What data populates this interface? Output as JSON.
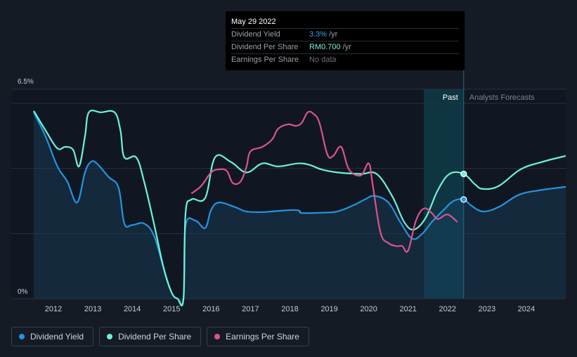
{
  "tooltip": {
    "date": "May 29 2022",
    "rows": [
      {
        "label": "Dividend Yield",
        "value": "3.3%",
        "unit": "/yr"
      },
      {
        "label": "Dividend Per Share",
        "value": "RM0.700",
        "unit": "/yr"
      },
      {
        "label": "Earnings Per Share",
        "value": "No data",
        "unit": ""
      }
    ]
  },
  "legend": {
    "items": [
      {
        "label": "Dividend Yield",
        "color": "#2394df"
      },
      {
        "label": "Dividend Per Share",
        "color": "#6cf2d8"
      },
      {
        "label": "Earnings Per Share",
        "color": "#d9548e"
      }
    ]
  },
  "chart_data": {
    "type": "line",
    "title": "",
    "xlabel": "",
    "ylabel": "",
    "y_top_label": "6.5%",
    "y_bottom_label": "0%",
    "ylim": [
      0,
      6.5
    ],
    "xlim": [
      2011.5,
      2025.0
    ],
    "x_ticks": [
      "2012",
      "2013",
      "2014",
      "2015",
      "2016",
      "2017",
      "2018",
      "2019",
      "2020",
      "2021",
      "2022",
      "2023",
      "2024"
    ],
    "past_label": "Past",
    "forecast_label": "Analysts Forecasts",
    "past_band_start": 2021.4,
    "forecast_start": 2022.41,
    "series": [
      {
        "name": "Dividend Yield",
        "color": "#2394df",
        "fill": true,
        "points": [
          [
            2011.5,
            6.2
          ],
          [
            2011.8,
            5.4
          ],
          [
            2012.1,
            4.4
          ],
          [
            2012.35,
            3.9
          ],
          [
            2012.6,
            3.2
          ],
          [
            2012.8,
            4.2
          ],
          [
            2012.95,
            4.55
          ],
          [
            2013.1,
            4.5
          ],
          [
            2013.4,
            4.05
          ],
          [
            2013.65,
            3.7
          ],
          [
            2013.8,
            2.5
          ],
          [
            2014.0,
            2.45
          ],
          [
            2014.3,
            2.5
          ],
          [
            2014.55,
            2.1
          ],
          [
            2014.8,
            1.0
          ],
          [
            2015.0,
            0.2
          ],
          [
            2015.15,
            0.0
          ],
          [
            2015.3,
            0.0
          ],
          [
            2015.35,
            2.4
          ],
          [
            2015.6,
            2.6
          ],
          [
            2015.85,
            2.35
          ],
          [
            2016.0,
            2.95
          ],
          [
            2016.2,
            3.2
          ],
          [
            2016.6,
            3.05
          ],
          [
            2016.9,
            2.9
          ],
          [
            2017.3,
            2.88
          ],
          [
            2017.7,
            2.92
          ],
          [
            2018.1,
            2.95
          ],
          [
            2018.25,
            2.92
          ],
          [
            2018.3,
            2.85
          ],
          [
            2018.8,
            2.86
          ],
          [
            2019.2,
            2.9
          ],
          [
            2019.6,
            3.1
          ],
          [
            2019.9,
            3.3
          ],
          [
            2020.15,
            3.42
          ],
          [
            2020.5,
            3.2
          ],
          [
            2020.8,
            2.55
          ],
          [
            2021.1,
            2.0
          ],
          [
            2021.35,
            2.15
          ],
          [
            2021.6,
            2.55
          ],
          [
            2021.9,
            2.95
          ],
          [
            2022.15,
            3.25
          ],
          [
            2022.41,
            3.3
          ],
          [
            2022.6,
            3.1
          ],
          [
            2022.9,
            2.9
          ],
          [
            2023.3,
            3.05
          ],
          [
            2023.8,
            3.45
          ],
          [
            2024.3,
            3.6
          ],
          [
            2025.0,
            3.72
          ]
        ]
      },
      {
        "name": "Dividend Per Share",
        "color": "#6cf2d8",
        "fill": false,
        "points": [
          [
            2011.5,
            6.25
          ],
          [
            2011.8,
            5.6
          ],
          [
            2012.1,
            5.0
          ],
          [
            2012.3,
            5.05
          ],
          [
            2012.5,
            4.95
          ],
          [
            2012.65,
            4.4
          ],
          [
            2012.8,
            5.4
          ],
          [
            2012.9,
            6.2
          ],
          [
            2013.2,
            6.2
          ],
          [
            2013.55,
            6.2
          ],
          [
            2013.7,
            5.6
          ],
          [
            2013.8,
            4.7
          ],
          [
            2014.1,
            4.7
          ],
          [
            2014.3,
            3.9
          ],
          [
            2014.55,
            2.5
          ],
          [
            2014.8,
            1.0
          ],
          [
            2015.0,
            0.2
          ],
          [
            2015.15,
            0.0
          ],
          [
            2015.3,
            0.0
          ],
          [
            2015.35,
            2.8
          ],
          [
            2015.5,
            3.3
          ],
          [
            2015.85,
            3.35
          ],
          [
            2016.1,
            4.7
          ],
          [
            2016.5,
            4.55
          ],
          [
            2016.9,
            4.2
          ],
          [
            2017.3,
            4.5
          ],
          [
            2017.7,
            4.4
          ],
          [
            2018.2,
            4.5
          ],
          [
            2018.5,
            4.45
          ],
          [
            2018.8,
            4.3
          ],
          [
            2019.2,
            4.2
          ],
          [
            2019.8,
            4.15
          ],
          [
            2020.2,
            4.15
          ],
          [
            2020.6,
            3.4
          ],
          [
            2020.9,
            2.55
          ],
          [
            2021.15,
            2.3
          ],
          [
            2021.45,
            2.7
          ],
          [
            2021.75,
            3.6
          ],
          [
            2022.05,
            4.15
          ],
          [
            2022.41,
            4.15
          ],
          [
            2022.7,
            3.8
          ],
          [
            2022.9,
            3.65
          ],
          [
            2023.3,
            3.75
          ],
          [
            2023.85,
            4.3
          ],
          [
            2024.4,
            4.55
          ],
          [
            2025.0,
            4.75
          ]
        ]
      },
      {
        "name": "Earnings Per Share",
        "color": "#d9548e",
        "fill": false,
        "points": [
          [
            2015.5,
            3.5
          ],
          [
            2015.75,
            3.75
          ],
          [
            2016.0,
            4.2
          ],
          [
            2016.2,
            4.3
          ],
          [
            2016.4,
            4.25
          ],
          [
            2016.55,
            3.85
          ],
          [
            2016.75,
            3.9
          ],
          [
            2016.9,
            4.4
          ],
          [
            2017.0,
            4.9
          ],
          [
            2017.3,
            5.05
          ],
          [
            2017.55,
            5.3
          ],
          [
            2017.7,
            5.65
          ],
          [
            2017.95,
            5.8
          ],
          [
            2018.15,
            5.75
          ],
          [
            2018.3,
            5.85
          ],
          [
            2018.45,
            6.2
          ],
          [
            2018.6,
            6.15
          ],
          [
            2018.75,
            5.85
          ],
          [
            2018.95,
            4.8
          ],
          [
            2019.1,
            4.75
          ],
          [
            2019.3,
            5.05
          ],
          [
            2019.5,
            4.3
          ],
          [
            2019.8,
            4.1
          ],
          [
            2020.0,
            4.5
          ],
          [
            2020.1,
            3.8
          ],
          [
            2020.3,
            2.2
          ],
          [
            2020.5,
            1.85
          ],
          [
            2020.7,
            1.75
          ],
          [
            2020.85,
            1.75
          ],
          [
            2021.0,
            1.6
          ],
          [
            2021.2,
            2.6
          ],
          [
            2021.4,
            3.0
          ],
          [
            2021.6,
            2.85
          ],
          [
            2021.75,
            2.65
          ],
          [
            2022.0,
            2.8
          ],
          [
            2022.25,
            2.55
          ]
        ]
      }
    ],
    "markers": [
      {
        "series": "Dividend Per Share",
        "x": 2022.41,
        "y": 4.15
      },
      {
        "series": "Dividend Yield",
        "x": 2022.41,
        "y": 3.3
      }
    ]
  }
}
